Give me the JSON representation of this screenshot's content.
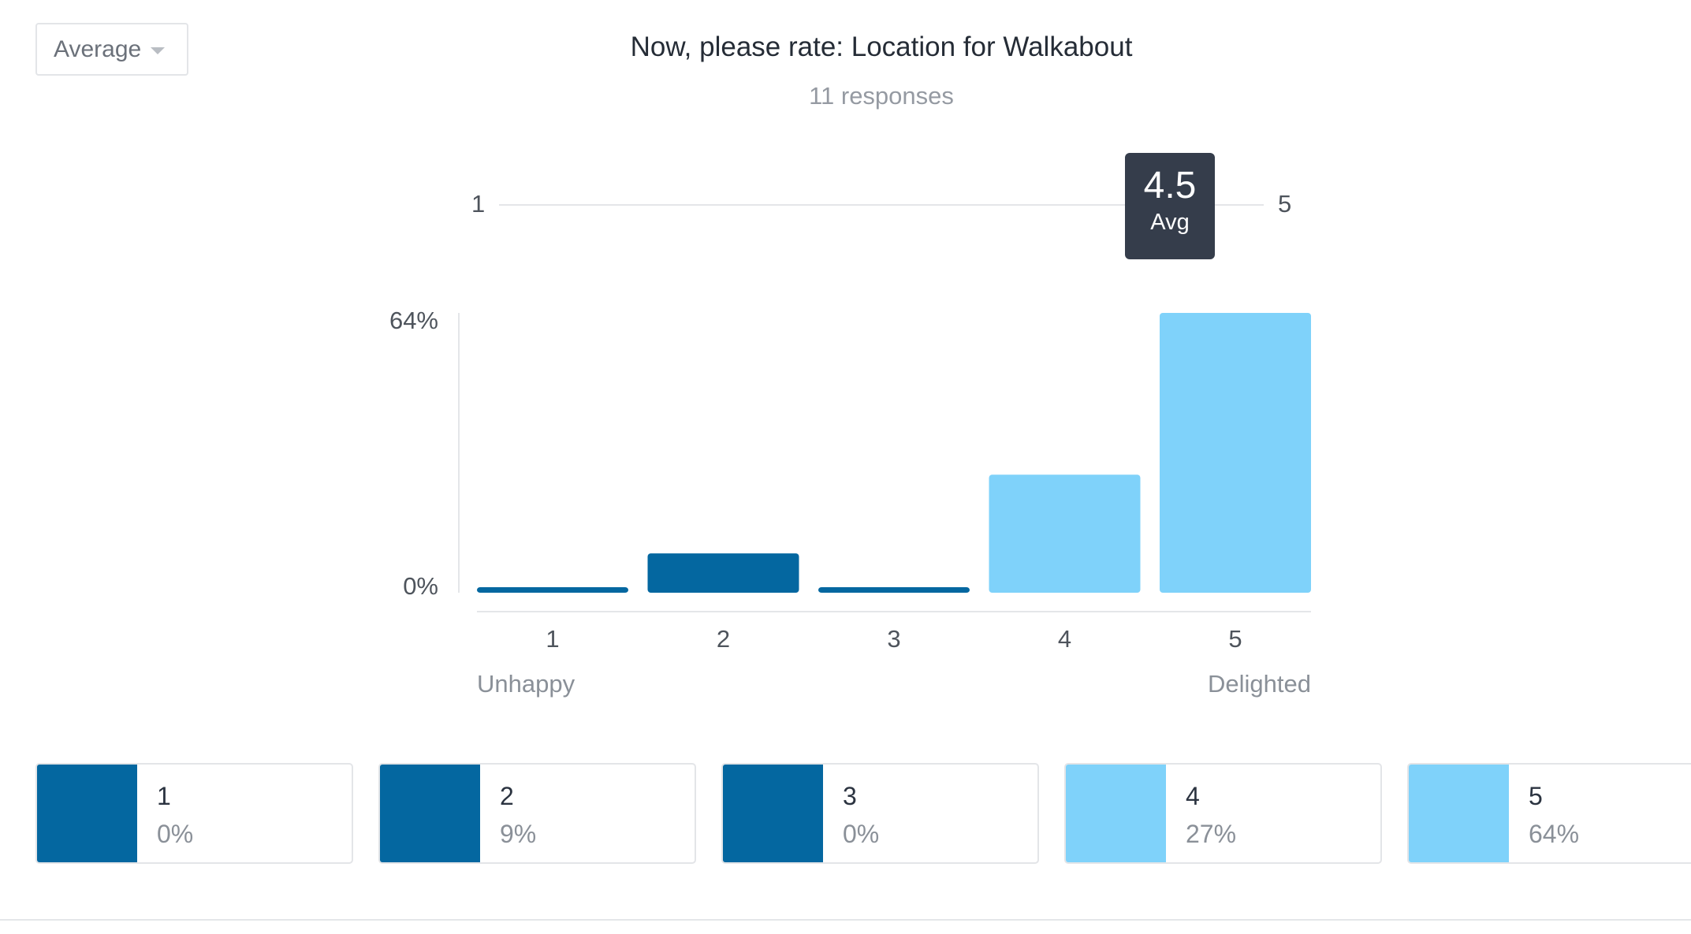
{
  "dropdown": {
    "label": "Average"
  },
  "question": {
    "title": "Now, please rate: Location for Walkabout",
    "responses": "11 responses"
  },
  "scale": {
    "min_label": "1",
    "max_label": "5"
  },
  "average": {
    "value": "4.5",
    "label": "Avg"
  },
  "colors": {
    "dark_blue": "#0467a0",
    "light_blue": "#7fd2fa",
    "tooltip_bg": "#353d4b"
  },
  "chart_data": {
    "type": "bar",
    "categories": [
      "1",
      "2",
      "3",
      "4",
      "5"
    ],
    "values": [
      0,
      9,
      0,
      27,
      64
    ],
    "colors": [
      "#0467a0",
      "#0467a0",
      "#0467a0",
      "#7fd2fa",
      "#7fd2fa"
    ],
    "ylim": [
      0,
      64
    ],
    "ytick_labels": [
      "0%",
      "64%"
    ],
    "left_label": "Unhappy",
    "right_label": "Delighted"
  },
  "legend": [
    {
      "label": "1",
      "pct": "0%",
      "color": "#0467a0"
    },
    {
      "label": "2",
      "pct": "9%",
      "color": "#0467a0"
    },
    {
      "label": "3",
      "pct": "0%",
      "color": "#0467a0"
    },
    {
      "label": "4",
      "pct": "27%",
      "color": "#7fd2fa"
    },
    {
      "label": "5",
      "pct": "64%",
      "color": "#7fd2fa"
    }
  ]
}
